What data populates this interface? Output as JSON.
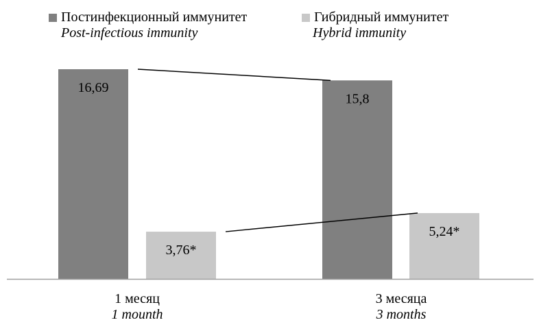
{
  "chart_data": {
    "type": "bar",
    "categories": [
      {
        "label": "1 месяц",
        "sublabel": "1 mounth"
      },
      {
        "label": "3 месяца",
        "sublabel": "3 months"
      }
    ],
    "series": [
      {
        "name": "Постинфекционный иммунитет",
        "subname": "Post-infectious immunity",
        "color": "#808080",
        "values": [
          16.69,
          15.8
        ],
        "labels": [
          "16,69",
          "15,8"
        ]
      },
      {
        "name": "Гибридный иммунитет",
        "subname": "Hybrid immunity",
        "color": "#c8c8c8",
        "values": [
          3.76,
          5.24
        ],
        "labels": [
          "3,76*",
          "5,24*"
        ]
      }
    ],
    "ylim": [
      0,
      16.69
    ],
    "grid": false,
    "legend_position": "top",
    "trend_lines": true,
    "axis_color": "#a0a0a0"
  }
}
